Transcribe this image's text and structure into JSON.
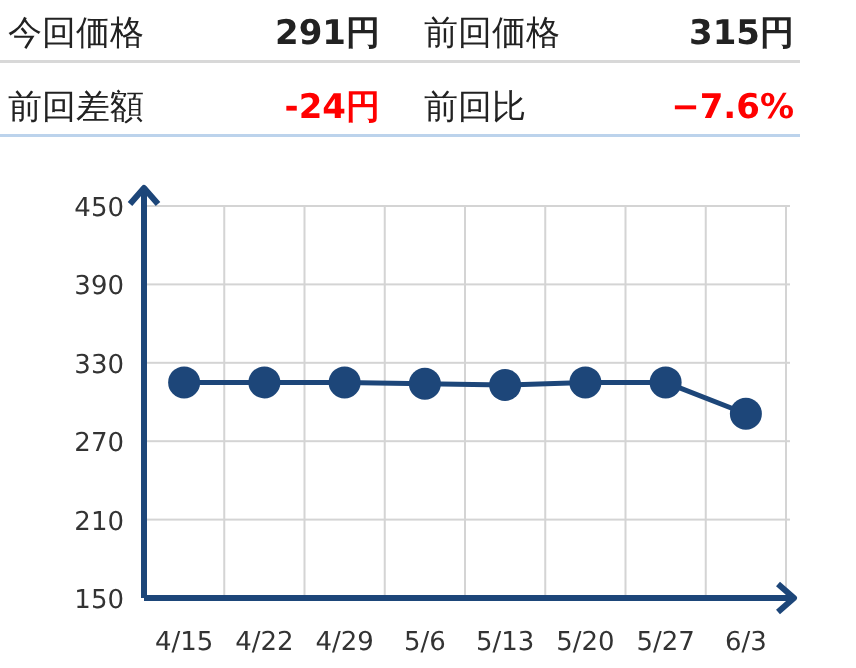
{
  "chart_data": [
    {
      "type": "other",
      "annotations": [
        "今回価格",
        "291円",
        "前回価格",
        "315円",
        "前回差額",
        "-24円",
        "前回比",
        "−7.6%"
      ]
    },
    {
      "type": "line",
      "categories": [
        "4/15",
        "4/22",
        "4/29",
        "5/6",
        "5/13",
        "5/20",
        "5/27",
        "6/3"
      ],
      "series": [
        {
          "color": "#1d4679",
          "values": [
            315,
            315,
            315,
            314,
            313,
            315,
            315,
            291
          ]
        }
      ],
      "ylim": [
        150,
        450
      ],
      "yticks": [
        150,
        210,
        270,
        330,
        390,
        450
      ],
      "grid": true,
      "marker": "circle",
      "line_style": "solid"
    }
  ]
}
